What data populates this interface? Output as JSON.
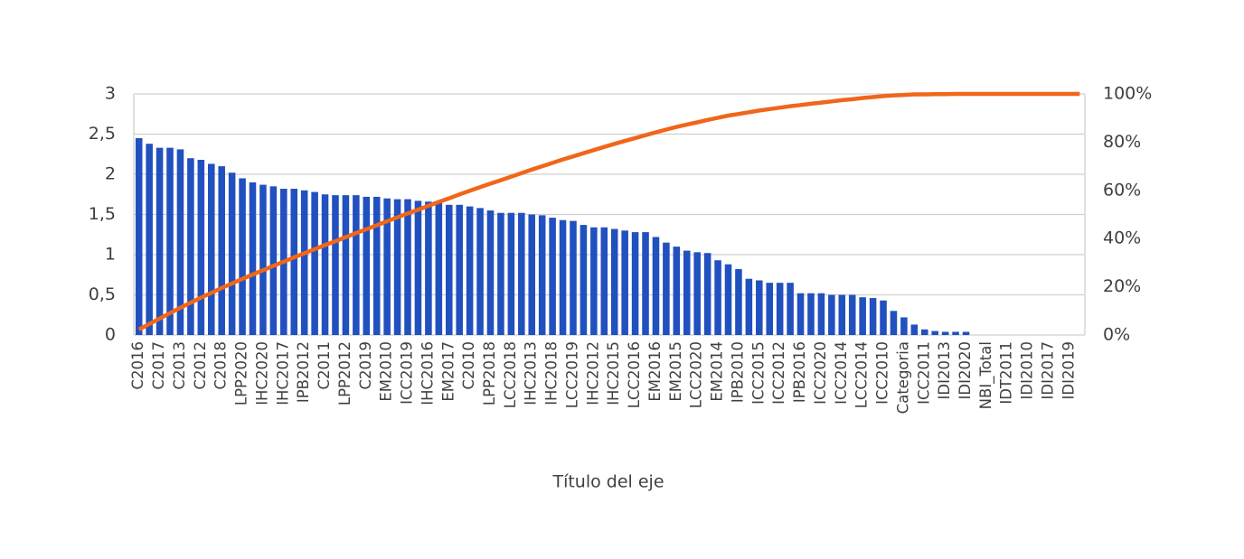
{
  "chart_data": {
    "type": "bar",
    "x_label": "Título del eje",
    "categories": [
      "C2016",
      null,
      "C2017",
      null,
      "C2013",
      null,
      "C2012",
      null,
      "C2018",
      null,
      "LPP2020",
      null,
      "IHC2020",
      null,
      "IHC2017",
      null,
      "IPB2012",
      null,
      "C2011",
      null,
      "LPP2012",
      null,
      "C2019",
      null,
      "EM2010",
      null,
      "ICC2019",
      null,
      "IHC2016",
      null,
      "EM2017",
      null,
      "C2010",
      null,
      "LPP2018",
      null,
      "LCC2018",
      null,
      "IHC2013",
      null,
      "IHC2018",
      null,
      "LCC2019",
      null,
      "IHC2012",
      null,
      "IHC2015",
      null,
      "LCC2016",
      null,
      "EM2016",
      null,
      "EM2015",
      null,
      "LCC2020",
      null,
      "EM2014",
      null,
      "IPB2010",
      null,
      "ICC2015",
      null,
      "ICC2012",
      null,
      "IPB2016",
      null,
      "ICC2020",
      null,
      "ICC2014",
      null,
      "LCC2014",
      null,
      "ICC2010",
      null,
      "Categoria",
      null,
      "ICC2011",
      null,
      "IDI2013",
      null,
      "IDI2020",
      null,
      "NBI_Total",
      null,
      "IDT2011",
      null,
      "IDI2010",
      null,
      "IDI2017",
      null,
      "IDI2019",
      null
    ],
    "series": [
      {
        "type": "bar",
        "color": "#2150bf",
        "values": [
          2.45,
          2.38,
          2.33,
          2.33,
          2.31,
          2.2,
          2.18,
          2.13,
          2.1,
          2.02,
          1.95,
          1.9,
          1.87,
          1.85,
          1.82,
          1.82,
          1.8,
          1.78,
          1.75,
          1.74,
          1.74,
          1.74,
          1.72,
          1.72,
          1.7,
          1.69,
          1.69,
          1.67,
          1.66,
          1.65,
          1.62,
          1.62,
          1.6,
          1.58,
          1.55,
          1.52,
          1.52,
          1.52,
          1.5,
          1.49,
          1.46,
          1.43,
          1.42,
          1.37,
          1.34,
          1.34,
          1.32,
          1.3,
          1.28,
          1.28,
          1.22,
          1.15,
          1.1,
          1.05,
          1.03,
          1.02,
          0.93,
          0.88,
          0.82,
          0.7,
          0.68,
          0.65,
          0.65,
          0.65,
          0.52,
          0.52,
          0.52,
          0.5,
          0.5,
          0.5,
          0.47,
          0.46,
          0.43,
          0.3,
          0.22,
          0.13,
          0.07,
          0.05,
          0.04,
          0.04,
          0.04,
          0,
          0,
          0,
          0,
          0,
          0,
          0,
          0,
          0,
          0,
          0
        ]
      },
      {
        "type": "line",
        "axis": "y2",
        "color": "#f0661a",
        "values": [
          2.3,
          4.6,
          6.8,
          9.1,
          11.3,
          13.4,
          15.5,
          17.5,
          19.5,
          21.4,
          23.3,
          25.1,
          26.9,
          28.7,
          30.4,
          32.2,
          33.9,
          35.6,
          37.3,
          38.9,
          40.6,
          42.3,
          43.9,
          45.5,
          47.2,
          48.8,
          50.4,
          52.0,
          53.6,
          55.2,
          56.7,
          58.3,
          59.8,
          61.3,
          62.8,
          64.2,
          65.7,
          67.1,
          68.6,
          70.0,
          71.4,
          72.8,
          74.1,
          75.4,
          76.7,
          78.0,
          79.3,
          80.5,
          81.7,
          82.9,
          84.1,
          85.2,
          86.3,
          87.3,
          88.2,
          89.2,
          90.1,
          91.0,
          91.7,
          92.4,
          93.1,
          93.7,
          94.3,
          94.9,
          95.4,
          95.9,
          96.4,
          96.9,
          97.4,
          97.8,
          98.3,
          98.7,
          99.1,
          99.4,
          99.6,
          99.8,
          99.8,
          99.9,
          99.9,
          100,
          100,
          100,
          100,
          100,
          100,
          100,
          100,
          100,
          100,
          100,
          100,
          100
        ]
      }
    ],
    "ylim": [
      0,
      3
    ],
    "yticks": [
      0,
      {
        "value": 0.5,
        "label": "0,5"
      },
      1,
      {
        "value": 1.5,
        "label": "1,5"
      },
      2,
      {
        "value": 2.5,
        "label": "2,5"
      },
      3
    ],
    "y2lim": [
      0,
      100
    ],
    "y2ticks": [
      {
        "value": 0,
        "label": "0%"
      },
      {
        "value": 20,
        "label": "20%"
      },
      {
        "value": 40,
        "label": "40%"
      },
      {
        "value": 60,
        "label": "60%"
      },
      {
        "value": 80,
        "label": "80%"
      },
      {
        "value": 100,
        "label": "100%"
      }
    ],
    "grid": true
  }
}
